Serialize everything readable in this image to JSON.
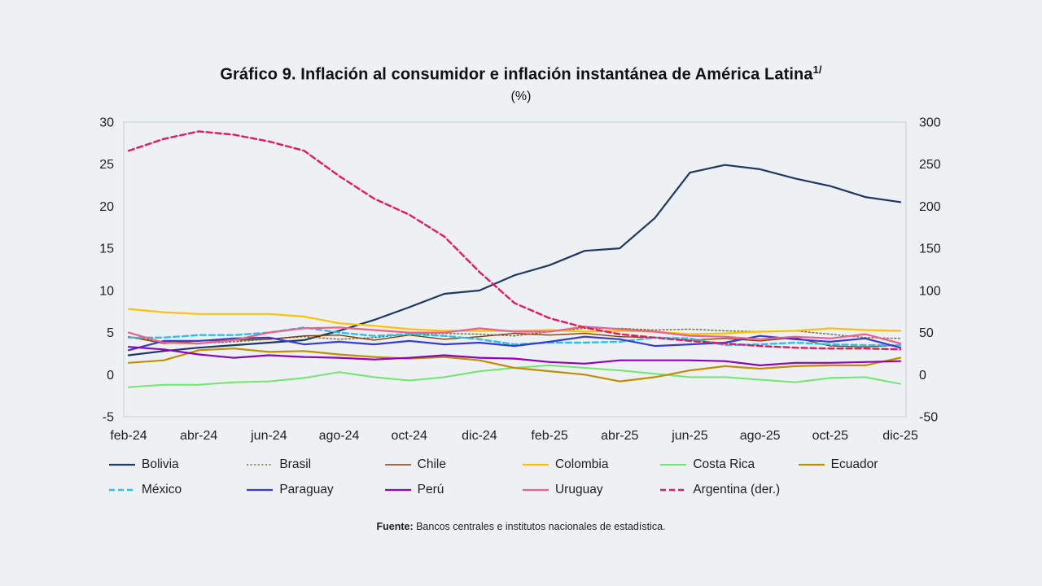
{
  "page": {
    "background": "#edf1f4"
  },
  "header": {
    "title": "Gráfico 9. Inflación al consumidor e inflación instantánea de América Latina",
    "title_superscript": "1/",
    "subtitle": "(%)"
  },
  "source": {
    "label": "Fuente:",
    "text": " Bancos centrales e institutos nacionales de estadística."
  },
  "chart_data": {
    "type": "line",
    "title": "Gráfico 9. Inflación al consumidor e inflación instantánea de América Latina 1/",
    "subtitle": "(%)",
    "grid": false,
    "legend_position": "bottom",
    "x_labels_all": [
      "feb-24",
      "mar-24",
      "abr-24",
      "may-24",
      "jun-24",
      "jul-24",
      "ago-24",
      "sep-24",
      "oct-24",
      "nov-24",
      "dic-24",
      "ene-25",
      "feb-25",
      "mar-25",
      "abr-25",
      "may-25",
      "jun-25",
      "jul-25",
      "ago-25",
      "sep-25",
      "oct-25",
      "nov-25",
      "dic-25"
    ],
    "x_tick_labels": [
      "feb-24",
      "abr-24",
      "jun-24",
      "ago-24",
      "oct-24",
      "dic-24",
      "feb-25",
      "abr-25",
      "jun-25",
      "ago-25",
      "oct-25",
      "dic-25"
    ],
    "left_axis": {
      "min": -5,
      "max": 30,
      "ticks": [
        30,
        25,
        20,
        15,
        10,
        5,
        0,
        -5
      ]
    },
    "right_axis": {
      "min": -50,
      "max": 300,
      "ticks": [
        300,
        250,
        200,
        150,
        100,
        50,
        0,
        -50
      ]
    },
    "series": [
      {
        "id": "bolivia",
        "name": "Bolivia",
        "color": "#1f3864",
        "width": 2.2,
        "dash": "",
        "axis": "left",
        "values": [
          2.3,
          2.8,
          3.2,
          3.5,
          3.8,
          4.1,
          5.2,
          6.5,
          8.0,
          9.6,
          10.0,
          11.8,
          13.0,
          14.7,
          15.0,
          18.6,
          24.0,
          24.9,
          24.4,
          23.3,
          22.4,
          21.1,
          20.5
        ]
      },
      {
        "id": "brasil",
        "name": "Brasil",
        "color": "#66743a",
        "width": 1.4,
        "dash": "2 2.6",
        "axis": "left",
        "values": [
          4.5,
          3.9,
          3.7,
          3.9,
          4.2,
          4.5,
          4.2,
          4.4,
          4.8,
          4.9,
          4.8,
          4.6,
          5.1,
          5.5,
          5.5,
          5.3,
          5.4,
          5.2,
          5.1,
          5.2,
          4.8,
          4.4,
          4.3
        ]
      },
      {
        "id": "chile",
        "name": "Chile",
        "color": "#843c0c",
        "width": 1.4,
        "dash": "",
        "axis": "left",
        "values": [
          4.5,
          3.7,
          4.0,
          4.1,
          4.2,
          4.6,
          4.7,
          4.1,
          4.7,
          4.2,
          4.5,
          4.9,
          4.7,
          4.9,
          4.5,
          4.4,
          4.1,
          4.3,
          4.0,
          4.4,
          3.4,
          3.3,
          3.5
        ]
      },
      {
        "id": "colombia",
        "name": "Colombia",
        "color": "#ffc000",
        "width": 2.2,
        "dash": "",
        "axis": "left",
        "values": [
          7.8,
          7.4,
          7.2,
          7.2,
          7.2,
          6.9,
          6.1,
          5.8,
          5.4,
          5.2,
          5.2,
          5.2,
          5.3,
          5.1,
          5.2,
          5.1,
          4.8,
          4.9,
          5.1,
          5.2,
          5.5,
          5.3,
          5.2
        ]
      },
      {
        "id": "costa-rica",
        "name": "Costa Rica",
        "color": "#6fe66f",
        "width": 2.0,
        "dash": "",
        "axis": "left",
        "values": [
          -1.5,
          -1.2,
          -1.2,
          -0.9,
          -0.8,
          -0.4,
          0.3,
          -0.3,
          -0.7,
          -0.3,
          0.4,
          0.8,
          1.1,
          0.8,
          0.5,
          0.1,
          -0.3,
          -0.3,
          -0.6,
          -0.9,
          -0.4,
          -0.3,
          -1.1
        ]
      },
      {
        "id": "ecuador",
        "name": "Ecuador",
        "color": "#bf8f00",
        "width": 2.2,
        "dash": "",
        "axis": "left",
        "values": [
          1.4,
          1.7,
          2.9,
          3.1,
          2.7,
          2.8,
          2.4,
          2.1,
          1.9,
          2.1,
          1.7,
          0.8,
          0.4,
          0.0,
          -0.8,
          -0.3,
          0.5,
          1.0,
          0.7,
          1.0,
          1.1,
          1.1,
          2.0
        ]
      },
      {
        "id": "mexico",
        "name": "México",
        "color": "#2ec0e8",
        "width": 2.4,
        "dash": "7 4",
        "axis": "left",
        "values": [
          4.4,
          4.4,
          4.7,
          4.7,
          5.0,
          5.6,
          5.0,
          4.6,
          4.8,
          4.6,
          4.2,
          3.6,
          3.8,
          3.8,
          3.9,
          4.4,
          4.3,
          3.5,
          3.6,
          3.8,
          3.6,
          3.5,
          3.5
        ]
      },
      {
        "id": "paraguay",
        "name": "Paraguay",
        "color": "#3a3ad1",
        "width": 2.2,
        "dash": "",
        "axis": "left",
        "values": [
          2.9,
          4.0,
          4.0,
          4.3,
          4.4,
          3.6,
          3.9,
          3.6,
          4.0,
          3.6,
          3.8,
          3.4,
          3.9,
          4.5,
          4.2,
          3.4,
          3.6,
          3.8,
          4.6,
          4.2,
          3.9,
          4.3,
          3.2
        ]
      },
      {
        "id": "peru",
        "name": "Perú",
        "color": "#8f00bf",
        "width": 2.2,
        "dash": "",
        "axis": "left",
        "values": [
          3.3,
          3.0,
          2.4,
          2.0,
          2.3,
          2.1,
          2.0,
          1.8,
          2.0,
          2.3,
          2.0,
          1.9,
          1.5,
          1.3,
          1.7,
          1.7,
          1.7,
          1.6,
          1.1,
          1.4,
          1.4,
          1.5,
          1.6
        ]
      },
      {
        "id": "uruguay",
        "name": "Uruguay",
        "color": "#ee5f8e",
        "width": 2.2,
        "dash": "",
        "axis": "left",
        "values": [
          5.0,
          3.8,
          3.7,
          4.1,
          5.0,
          5.5,
          5.6,
          5.3,
          5.0,
          5.0,
          5.5,
          5.1,
          5.1,
          5.7,
          5.4,
          5.1,
          4.6,
          4.5,
          4.2,
          4.5,
          4.3,
          4.8,
          3.7
        ]
      },
      {
        "id": "argentina",
        "name": "Argentina (der.)",
        "color": "#e31a5f",
        "width": 2.4,
        "dash": "7 4",
        "axis": "right",
        "values": [
          266,
          280,
          289,
          285,
          277,
          266,
          236,
          209,
          190,
          164,
          122,
          85,
          67,
          56,
          48,
          44,
          40,
          37,
          34,
          32,
          31,
          31,
          30
        ]
      }
    ]
  }
}
